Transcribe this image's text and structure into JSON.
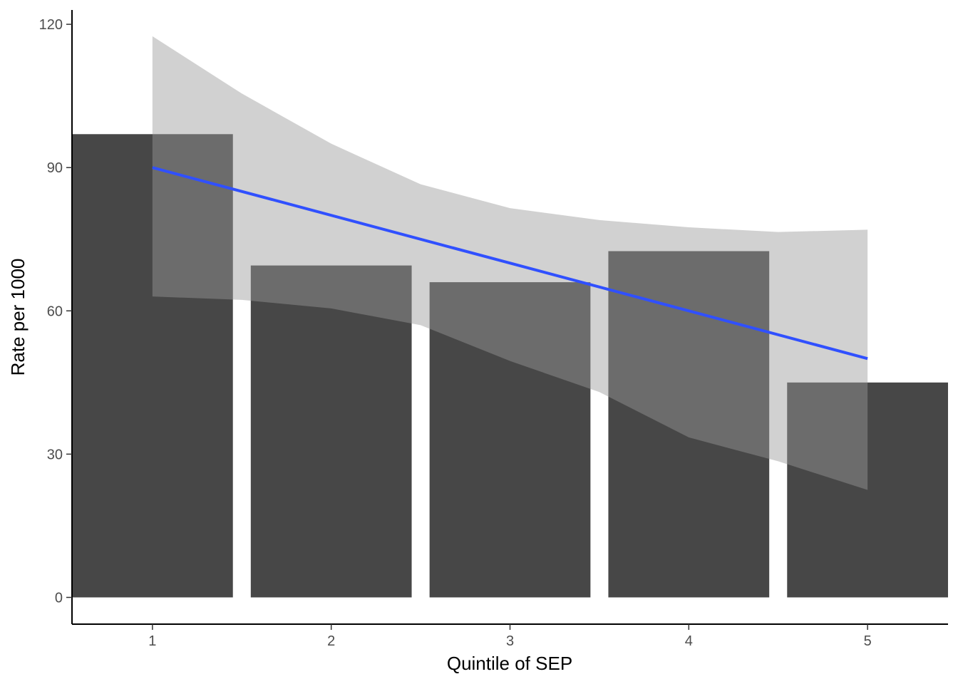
{
  "chart_data": {
    "type": "bar",
    "title": "",
    "xlabel": "Quintile of SEP",
    "ylabel": "Rate per 1000",
    "categories": [
      "1",
      "2",
      "3",
      "4",
      "5"
    ],
    "values": [
      97,
      69.5,
      66,
      72.5,
      45
    ],
    "ylim": [
      -5.6,
      123
    ],
    "y_ticks": [
      0,
      30,
      60,
      90,
      120
    ],
    "grid": false,
    "legend": "none",
    "bar_color": "#474747",
    "trend": {
      "type": "linear fit",
      "color": "#3050ff",
      "x": [
        1,
        5
      ],
      "y": [
        90,
        50
      ],
      "ribbon_color": "#999999",
      "ribbon": {
        "x": [
          1,
          1.5,
          2,
          2.5,
          3,
          3.5,
          4,
          4.5,
          5
        ],
        "lower": [
          63,
          62.3,
          60.5,
          57,
          49.5,
          43,
          33.5,
          28.5,
          22.5
        ],
        "upper": [
          117.5,
          105.5,
          95,
          86.5,
          81.5,
          79,
          77.5,
          76.5,
          77
        ]
      }
    }
  }
}
